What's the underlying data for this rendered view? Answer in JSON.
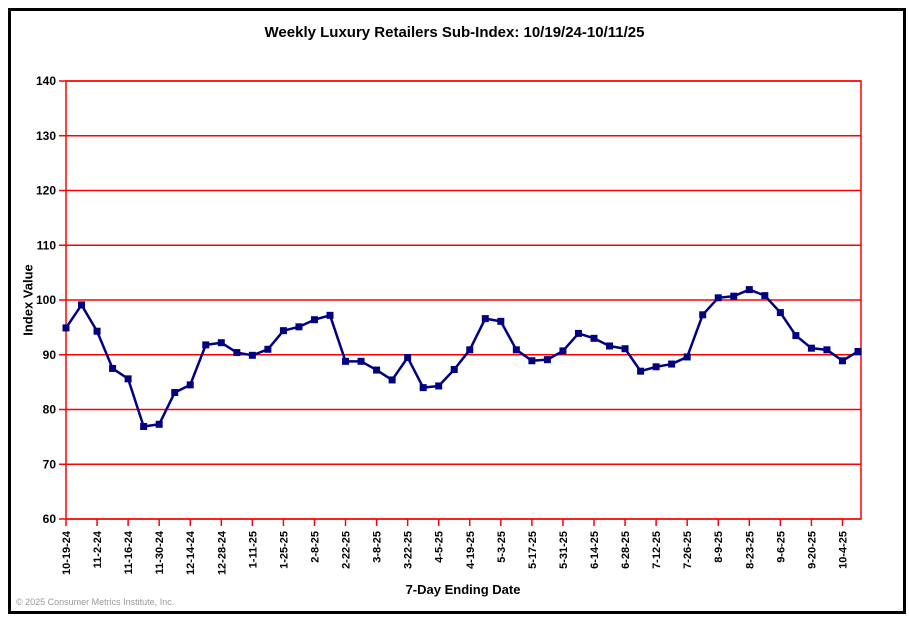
{
  "window": {
    "copyright": "© 2025 Consumer Metrics Institute, Inc."
  },
  "chart_data": {
    "type": "line",
    "title": "Weekly Luxury Retailers Sub-Index: 10/19/24-10/11/25",
    "xlabel": "7-Day Ending Date",
    "ylabel": "Index Value",
    "ylim": [
      60,
      140
    ],
    "yticks": [
      60,
      70,
      80,
      90,
      100,
      110,
      120,
      130,
      140
    ],
    "grid": "horizontal",
    "legend_position": "none",
    "series_color": "#000080",
    "grid_color": "#ff0000",
    "marker": "square",
    "x_ticks_every_n_points": 2,
    "x_tick_labels": [
      "10-19-24",
      "11-2-24",
      "11-16-24",
      "11-30-24",
      "12-14-24",
      "12-28-24",
      "1-11-25",
      "1-25-25",
      "2-8-25",
      "2-22-25",
      "3-8-25",
      "3-22-25",
      "4-5-25",
      "4-19-25",
      "5-3-25",
      "5-17-25",
      "5-31-25",
      "6-14-25",
      "6-28-25",
      "7-12-25",
      "7-26-25",
      "8-9-25",
      "8-23-25",
      "9-6-25",
      "9-20-25",
      "10-4-25"
    ],
    "values": [
      94.9,
      99.1,
      94.3,
      87.5,
      85.6,
      76.9,
      77.3,
      83.1,
      84.5,
      91.8,
      92.2,
      90.4,
      89.9,
      91.0,
      94.4,
      95.1,
      96.4,
      97.2,
      88.8,
      88.8,
      87.2,
      85.4,
      89.5,
      84.0,
      84.3,
      87.3,
      90.9,
      96.6,
      96.1,
      90.9,
      88.9,
      89.1,
      90.7,
      93.9,
      93.0,
      91.6,
      91.1,
      87.0,
      87.8,
      88.3,
      89.6,
      97.3,
      100.4,
      100.7,
      101.9,
      100.8,
      97.7,
      93.5,
      91.2,
      90.9,
      88.9,
      90.6
    ]
  }
}
